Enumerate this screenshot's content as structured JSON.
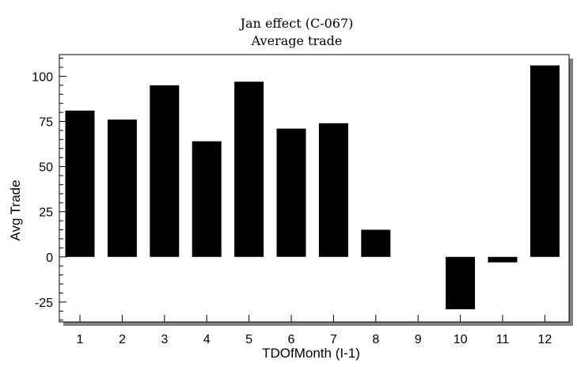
{
  "chart_data": {
    "type": "bar",
    "title": "Jan effect (C-067)",
    "subtitle": "Average trade",
    "xlabel": "TDOfMonth (I-1)",
    "ylabel": "Avg Trade",
    "categories": [
      "1",
      "2",
      "3",
      "4",
      "5",
      "6",
      "7",
      "8",
      "9",
      "10",
      "11",
      "12"
    ],
    "values": [
      81,
      76,
      95,
      64,
      97,
      71,
      74,
      15,
      0,
      -29,
      -3,
      106
    ],
    "ylim": [
      -36,
      112
    ],
    "yticks": [
      -25,
      0,
      25,
      50,
      75,
      100
    ],
    "ytick_labels": [
      "-25",
      "0",
      "25",
      "50",
      "75",
      "100"
    ],
    "grid": false,
    "bar_color": "#000000",
    "shadow_color": "#808080"
  }
}
